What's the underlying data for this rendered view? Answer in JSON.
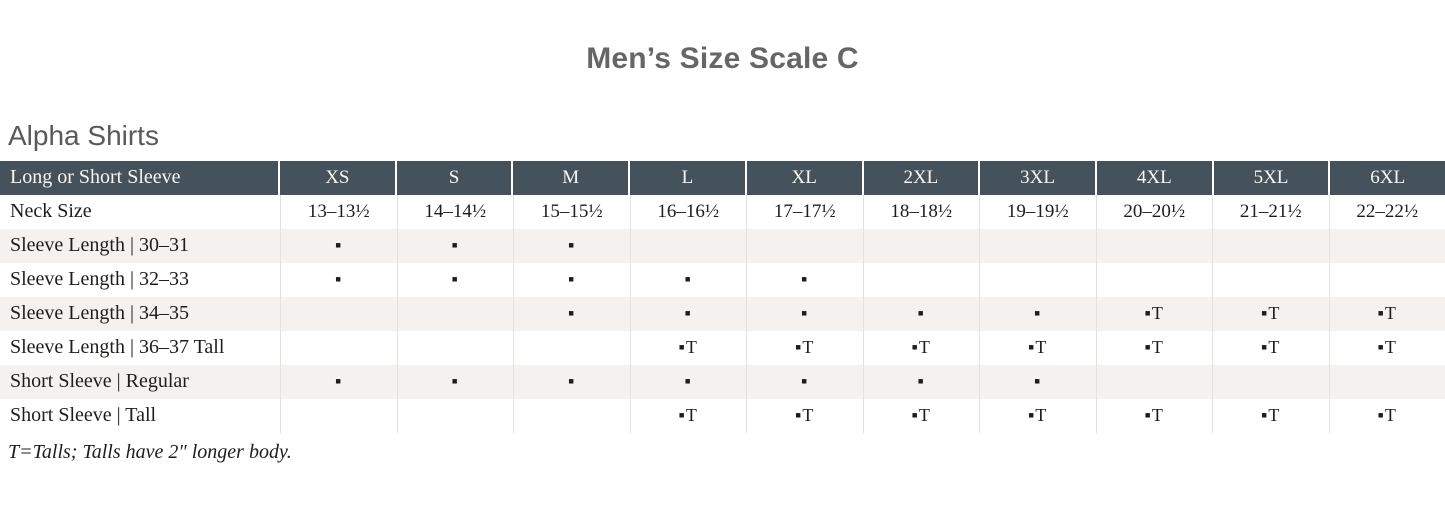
{
  "page": {
    "title": "Men’s Size Scale C",
    "section_heading": "Alpha Shirts",
    "footnote": "T=Talls; Talls have 2″ longer body."
  },
  "colors": {
    "header_bg": "#46525B",
    "header_text": "#F7F6F3",
    "stripe_bg": "#F4F1EE",
    "body_text": "#1F1D1B",
    "title_text": "#666666",
    "grid_line": "#E5E2DE"
  },
  "size_table": {
    "header_label": "Long or Short Sleeve",
    "size_columns": [
      "XS",
      "S",
      "M",
      "L",
      "XL",
      "2XL",
      "3XL",
      "4XL",
      "5XL",
      "6XL"
    ],
    "rows": [
      {
        "label": "Neck Size",
        "cells": [
          "13–13½",
          "14–14½",
          "15–15½",
          "16–16½",
          "17–17½",
          "18–18½",
          "19–19½",
          "20–20½",
          "21–21½",
          "22–22½"
        ]
      },
      {
        "label": "Sleeve Length | 30–31",
        "cells": [
          "▪",
          "▪",
          "▪",
          "",
          "",
          "",
          "",
          "",
          "",
          ""
        ]
      },
      {
        "label": "Sleeve Length | 32–33",
        "cells": [
          "▪",
          "▪",
          "▪",
          "▪",
          "▪",
          "",
          "",
          "",
          "",
          ""
        ]
      },
      {
        "label": "Sleeve Length | 34–35",
        "cells": [
          "",
          "",
          "▪",
          "▪",
          "▪",
          "▪",
          "▪",
          "▪T",
          "▪T",
          "▪T"
        ]
      },
      {
        "label": "Sleeve Length | 36–37 Tall",
        "cells": [
          "",
          "",
          "",
          "▪T",
          "▪T",
          "▪T",
          "▪T",
          "▪T",
          "▪T",
          "▪T"
        ]
      },
      {
        "label": "Short Sleeve | Regular",
        "cells": [
          "▪",
          "▪",
          "▪",
          "▪",
          "▪",
          "▪",
          "▪",
          "",
          "",
          ""
        ]
      },
      {
        "label": "Short Sleeve | Tall",
        "cells": [
          "",
          "",
          "",
          "▪T",
          "▪T",
          "▪T",
          "▪T",
          "▪T",
          "▪T",
          "▪T"
        ]
      }
    ],
    "legend": {
      "dot_marker": "▪",
      "tall_marker": "▪T"
    }
  }
}
